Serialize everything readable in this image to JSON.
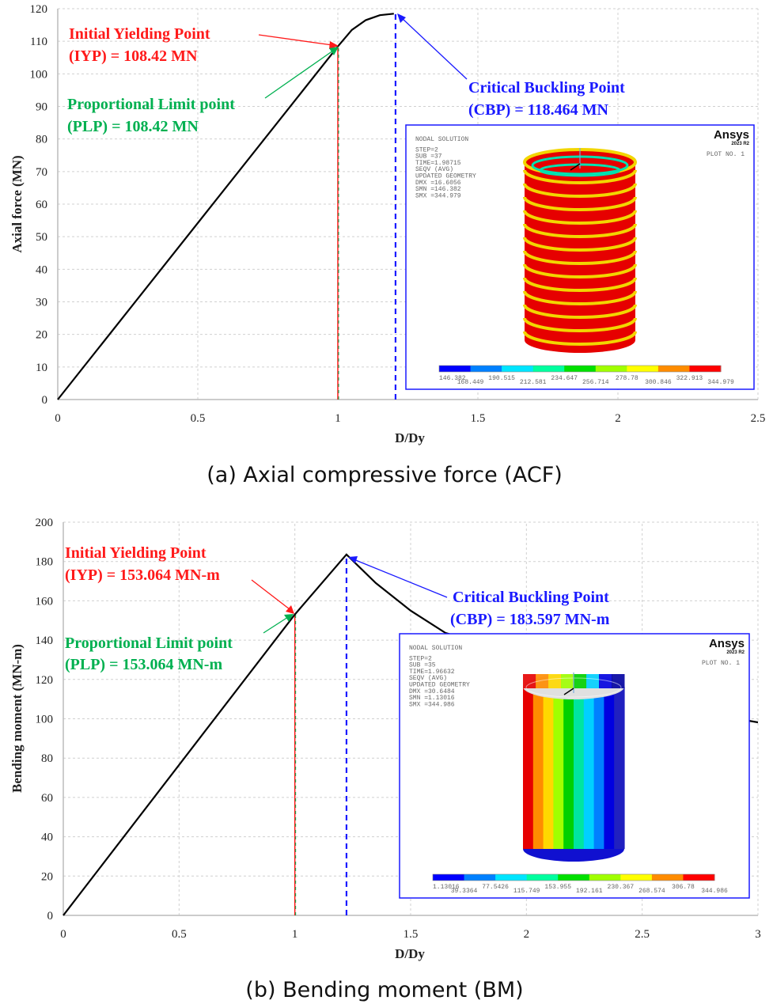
{
  "chart_data": [
    {
      "type": "line",
      "caption": "(a) Axial compressive force (ACF)",
      "xlabel": "D/Dy",
      "ylabel": "Axial force (MN)",
      "xlim": [
        0,
        2.5
      ],
      "ylim": [
        0,
        120
      ],
      "xticks": [
        "0",
        "0.5",
        "1",
        "1.5",
        "2",
        "2.5"
      ],
      "yticks": [
        "0",
        "10",
        "20",
        "30",
        "40",
        "50",
        "60",
        "70",
        "80",
        "90",
        "100",
        "110",
        "120"
      ],
      "grid": true,
      "series": [
        {
          "x": [
            0,
            1.0,
            1.05,
            1.1,
            1.15,
            1.2
          ],
          "y": [
            0,
            108.42,
            113.5,
            116.5,
            118.0,
            118.464
          ]
        }
      ],
      "markers": {
        "iyp_x": 1.0,
        "cbp_x": 1.206
      },
      "annotations": {
        "iyp_line1": "Initial Yielding Point",
        "iyp_line2": "(IYP) = 108.42 MN",
        "plp_line1": "Proportional Limit point",
        "plp_line2": "(PLP) = 108.42 MN",
        "cbp_line1": "Critical Buckling Point",
        "cbp_line2": "(CBP) = 118.464 MN"
      },
      "inset": {
        "lines": [
          "NODAL SOLUTION",
          "STEP=2",
          "SUB =37",
          "TIME=1.98715",
          "SEQV      (AVG)",
          "UPDATED GEOMETRY",
          "DMX =16.6056",
          "SMN =146.382",
          "SMX =344.979"
        ],
        "logo": "Ansys",
        "version": "2023 R2",
        "plot_no": "PLOT NO.   1",
        "colorbar": [
          "146.382",
          "168.449",
          "190.515",
          "212.581",
          "234.647",
          "256.714",
          "278.78",
          "300.846",
          "322.913",
          "344.979"
        ]
      }
    },
    {
      "type": "line",
      "caption": "(b) Bending moment (BM)",
      "xlabel": "D/Dy",
      "ylabel": "Bending moment (MN-m)",
      "xlim": [
        0,
        3
      ],
      "ylim": [
        0,
        200
      ],
      "xticks": [
        "0",
        "0.5",
        "1",
        "1.5",
        "2",
        "2.5",
        "3"
      ],
      "yticks": [
        "0",
        "20",
        "40",
        "60",
        "80",
        "100",
        "120",
        "140",
        "160",
        "180",
        "200"
      ],
      "grid": true,
      "series": [
        {
          "x": [
            0,
            1.0,
            1.223,
            1.35,
            1.5,
            1.65,
            2.94,
            3.0
          ],
          "y": [
            0,
            153.064,
            183.597,
            169,
            155,
            143.7,
            99.4,
            98.2
          ]
        }
      ],
      "markers": {
        "iyp_x": 1.0,
        "cbp_x": 1.223
      },
      "annotations": {
        "iyp_line1": "Initial Yielding Point",
        "iyp_line2": "(IYP) = 153.064 MN-m",
        "plp_line1": "Proportional Limit point",
        "plp_line2": "(PLP) = 153.064 MN-m",
        "cbp_line1": "Critical Buckling Point",
        "cbp_line2": "(CBP) = 183.597 MN-m"
      },
      "inset": {
        "lines": [
          "NODAL SOLUTION",
          "STEP=2",
          "SUB =35",
          "TIME=1.96632",
          "SEQV      (AVG)",
          "UPDATED GEOMETRY",
          "DMX =30.6484",
          "SMN =1.13016",
          "SMX =344.986"
        ],
        "logo": "Ansys",
        "version": "2023 R2",
        "plot_no": "PLOT NO.   1",
        "colorbar": [
          "1.13016",
          "39.3364",
          "77.5426",
          "115.749",
          "153.955",
          "192.161",
          "230.367",
          "268.574",
          "306.78",
          "344.986"
        ]
      }
    }
  ],
  "colors": {
    "iyp": "#ff1a1a",
    "plp": "#00b050",
    "cbp": "#1a1aff",
    "curve": "#000000",
    "colormap": [
      "#0000ff",
      "#0080ff",
      "#00e5ff",
      "#00ff9f",
      "#00e000",
      "#a0ff00",
      "#ffff00",
      "#ff8c00",
      "#ff0000"
    ]
  }
}
